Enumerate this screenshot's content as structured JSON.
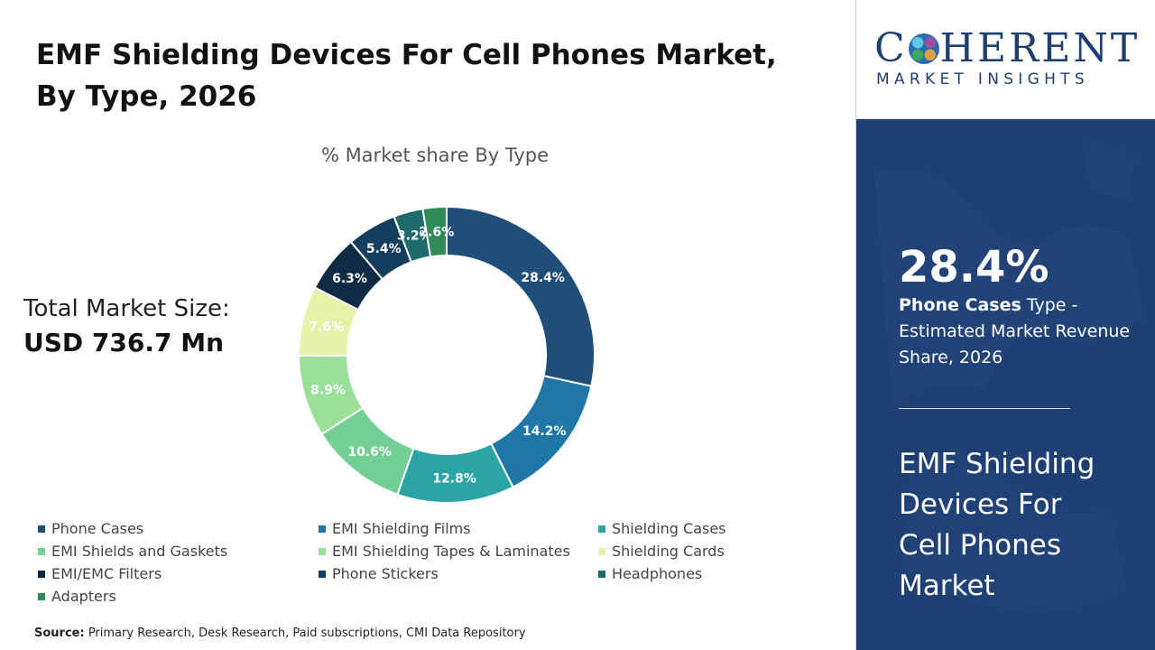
{
  "title_lines": [
    "EMF Shielding Devices For Cell Phones Market,",
    "By Type, 2026"
  ],
  "total_market": {
    "label": "Total Market Size:",
    "value": "USD 736.7 Mn"
  },
  "source": {
    "label": "Source:",
    "text": " Primary Research, Desk Research, Paid subscriptions, CMI Data Repository"
  },
  "logo": {
    "text_before": "C",
    "text_after": "HERENT",
    "subtitle": "MARKET INSIGHTS"
  },
  "side_panel": {
    "kpi_value": "28.4%",
    "kpi_bold": "Phone Cases",
    "kpi_rest": " Type - Estimated Market Revenue Share, 2026",
    "title_lines": [
      "EMF Shielding",
      "Devices For",
      "Cell Phones",
      "Market"
    ]
  },
  "colors": {
    "side_bg": "#1e3f73",
    "logo": "#1f3e72"
  },
  "chart_data": {
    "type": "pie",
    "style": "donut",
    "title": "% Market share By Type",
    "legend_position": "bottom",
    "categories": [
      "Phone Cases",
      "EMI Shielding Films",
      "Shielding Cases",
      "EMI Shields and Gaskets",
      "EMI Shielding Tapes & Laminates",
      "Shielding Cards",
      "EMI/EMC Filters",
      "Phone Stickers",
      "Headphones",
      "Adapters"
    ],
    "values": [
      28.4,
      14.2,
      12.8,
      10.6,
      8.9,
      7.6,
      6.3,
      5.4,
      3.2,
      2.6
    ],
    "labels": [
      "28.4%",
      "14.2%",
      "12.8%",
      "10.6%",
      "8.9%",
      "7.6%",
      "6.3%",
      "5.4%",
      "3.2%",
      "2.6%"
    ],
    "colors": [
      "#1f4e79",
      "#1f77a8",
      "#2aa4a4",
      "#74cf95",
      "#9be09a",
      "#e4f3a8",
      "#0f2a44",
      "#143e5e",
      "#1f6b6b",
      "#2e8b57"
    ]
  }
}
